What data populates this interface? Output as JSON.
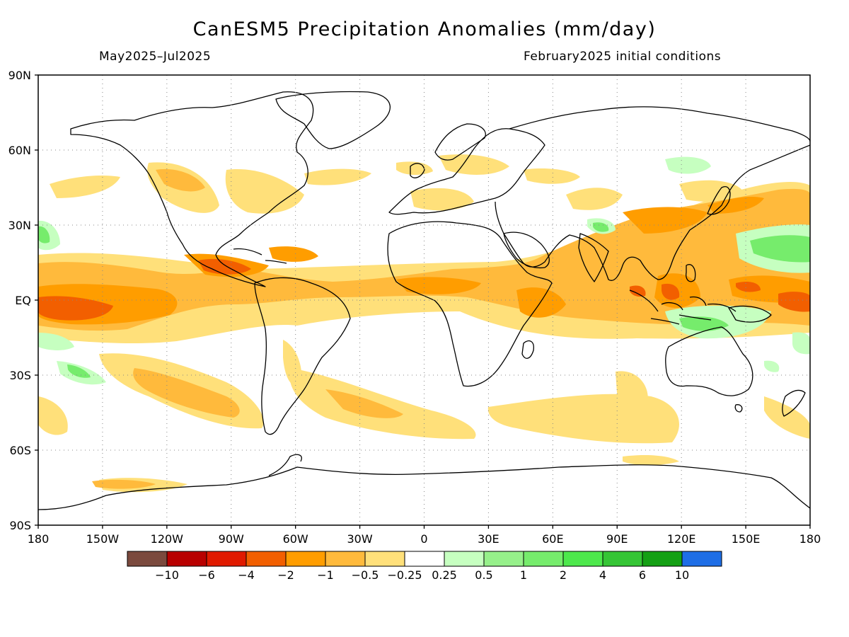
{
  "title": "CanESM5 Precipitation Anomalies (mm/day)",
  "subtitle_left": "May2025–Jul2025",
  "subtitle_right": "February2025 initial conditions",
  "lat_labels": [
    "90N",
    "60N",
    "30N",
    "EQ",
    "30S",
    "60S",
    "90S"
  ],
  "lon_labels": [
    "180",
    "150W",
    "120W",
    "90W",
    "60W",
    "30W",
    "0",
    "30E",
    "60E",
    "90E",
    "120E",
    "150E",
    "180"
  ],
  "colorbar": {
    "colors": [
      "#7b4a3e",
      "#b80000",
      "#e01a00",
      "#f25f00",
      "#ff9d00",
      "#ffba3c",
      "#ffe07a",
      "#ffffff",
      "#c6ffc0",
      "#96f08a",
      "#76ec6c",
      "#4de84c",
      "#35c535",
      "#14a014",
      "#1e6ee6"
    ],
    "labels": [
      "−10",
      "−6",
      "−4",
      "−2",
      "−1",
      "−0.5",
      "−0.25",
      "0.25",
      "0.5",
      "1",
      "2",
      "4",
      "6",
      "10"
    ]
  },
  "anomaly_colors": {
    "light_orange": "#ffe07a",
    "orange": "#ffba3c",
    "dark_orange": "#ff9d00",
    "red_orange": "#f25f00",
    "light_green": "#c6ffc0",
    "green": "#76ec6c"
  }
}
